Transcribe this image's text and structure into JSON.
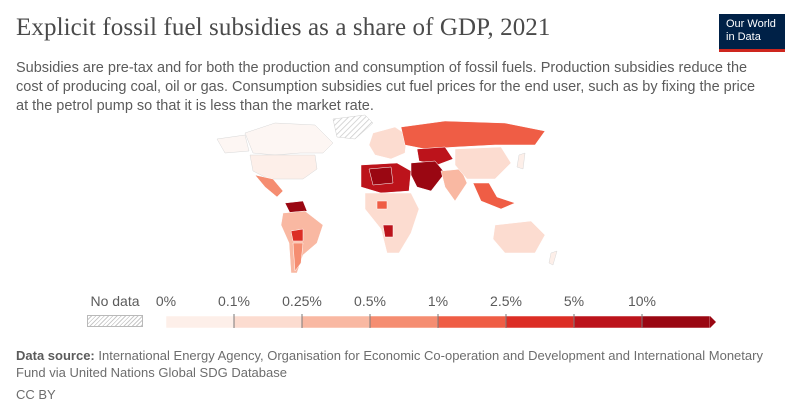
{
  "header": {
    "title": "Explicit fossil fuel subsidies as a share of GDP, 2021",
    "subtitle": "Subsidies are pre-tax and for both the production and consumption of fossil fuels. Production subsidies reduce the cost of producing coal, oil or gas. Consumption subsidies cut fuel prices for the end user, such as by fixing the price at the petrol pump so that it is less than the market rate."
  },
  "logo": {
    "line1": "Our World",
    "line2": "in Data"
  },
  "legend": {
    "no_data_label": "No data",
    "ticks": [
      "0%",
      "0.1%",
      "0.25%",
      "0.5%",
      "1%",
      "2.5%",
      "5%",
      "10%"
    ],
    "colors": [
      "#fdefe9",
      "#fcdcd0",
      "#f9b8a2",
      "#f58d71",
      "#ef5d45",
      "#dc2d25",
      "#bc131b",
      "#9a0712"
    ]
  },
  "footer": {
    "source_label": "Data source:",
    "source_text": " International Energy Agency, Organisation for Economic Co-operation and Development and International Monetary Fund via United Nations Global SDG Database",
    "license": "CC BY"
  }
}
